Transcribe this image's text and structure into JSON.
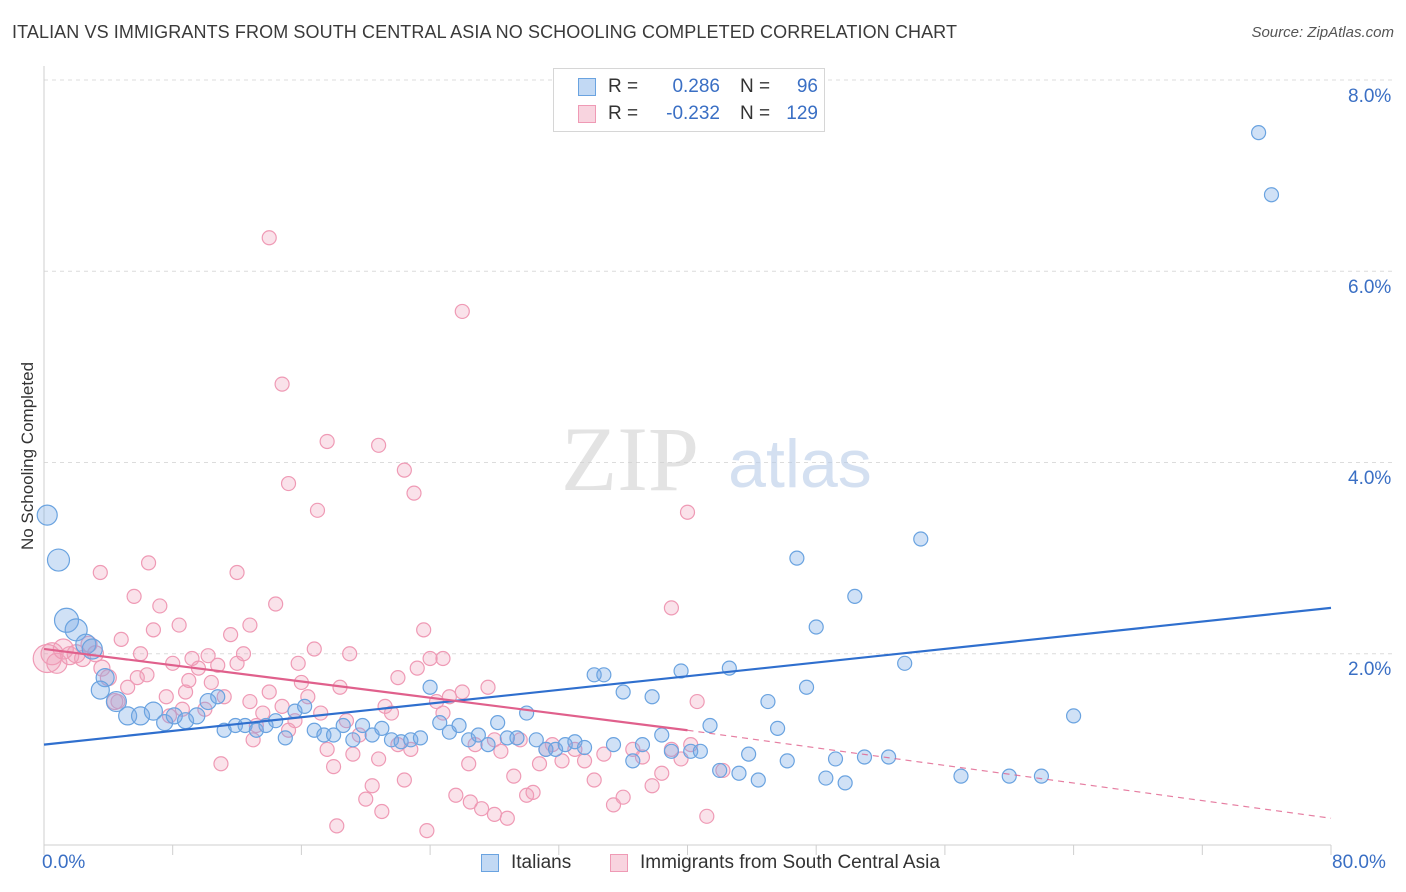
{
  "title": "ITALIAN VS IMMIGRANTS FROM SOUTH CENTRAL ASIA NO SCHOOLING COMPLETED CORRELATION CHART",
  "source": "Source: ZipAtlas.com",
  "watermark": {
    "zip": "ZIP",
    "atlas": "atlas"
  },
  "legend": {
    "r_label": "R =",
    "n_label": "N =",
    "items": [
      {
        "r": "0.286",
        "n": "96"
      },
      {
        "r": "-0.232",
        "n": "129"
      }
    ]
  },
  "bottom_legend": {
    "italians": "Italians",
    "immigrants": "Immigrants from South Central Asia"
  },
  "x_tick_labels": {
    "min": "0.0%",
    "max": "80.0%"
  },
  "y_tick_labels": [
    "8.0%",
    "6.0%",
    "4.0%",
    "2.0%"
  ],
  "colors": {
    "blue": "#6aa3e0",
    "blue_fill": "rgba(120,170,230,0.35)",
    "blue_line": "#2f6fce",
    "pink": "#ef9ab5",
    "pink_fill": "rgba(240,160,185,0.30)",
    "pink_line": "#e0608c",
    "tick_text": "#3a6fc4"
  },
  "chart_data": {
    "type": "scatter",
    "title": "ITALIAN VS IMMIGRANTS FROM SOUTH CENTRAL ASIA NO SCHOOLING COMPLETED CORRELATION CHART",
    "xlabel": "",
    "ylabel": "No Schooling Completed",
    "xlim": [
      0,
      80
    ],
    "ylim": [
      0,
      8.0
    ],
    "y_ticks": [
      2.0,
      4.0,
      6.0,
      8.0
    ],
    "grid": true,
    "legend_position": "top-center",
    "series": [
      {
        "name": "Italians",
        "r": 0.286,
        "n": 96,
        "trend": {
          "x": [
            0,
            80
          ],
          "y": [
            1.05,
            2.48
          ]
        },
        "points": [
          [
            0.2,
            3.45,
            10
          ],
          [
            0.9,
            2.98,
            11
          ],
          [
            1.4,
            2.35,
            12
          ],
          [
            2.0,
            2.25,
            11
          ],
          [
            2.6,
            2.1,
            10
          ],
          [
            3.0,
            2.05,
            10
          ],
          [
            3.8,
            1.75,
            9
          ],
          [
            3.5,
            1.62,
            9
          ],
          [
            4.5,
            1.5,
            10
          ],
          [
            5.2,
            1.35,
            9
          ],
          [
            6.0,
            1.35,
            9
          ],
          [
            6.8,
            1.4,
            9
          ],
          [
            7.5,
            1.28,
            8
          ],
          [
            8.1,
            1.35,
            8
          ],
          [
            8.8,
            1.3,
            8
          ],
          [
            9.5,
            1.35,
            8
          ],
          [
            10.2,
            1.5,
            8
          ],
          [
            10.8,
            1.55,
            7
          ],
          [
            11.2,
            1.2,
            7
          ],
          [
            11.9,
            1.25,
            7
          ],
          [
            12.5,
            1.25,
            7
          ],
          [
            13.2,
            1.2,
            7
          ],
          [
            13.8,
            1.25,
            7
          ],
          [
            14.4,
            1.3,
            7
          ],
          [
            15.0,
            1.12,
            7
          ],
          [
            15.6,
            1.4,
            7
          ],
          [
            16.2,
            1.45,
            7
          ],
          [
            16.8,
            1.2,
            7
          ],
          [
            17.4,
            1.15,
            7
          ],
          [
            18.0,
            1.15,
            7
          ],
          [
            18.6,
            1.25,
            7
          ],
          [
            19.2,
            1.1,
            7
          ],
          [
            19.8,
            1.25,
            7
          ],
          [
            20.4,
            1.15,
            7
          ],
          [
            21.0,
            1.22,
            7
          ],
          [
            21.6,
            1.1,
            7
          ],
          [
            22.2,
            1.08,
            7
          ],
          [
            22.8,
            1.1,
            7
          ],
          [
            23.4,
            1.12,
            7
          ],
          [
            24.0,
            1.65,
            7
          ],
          [
            24.6,
            1.28,
            7
          ],
          [
            25.2,
            1.18,
            7
          ],
          [
            25.8,
            1.25,
            7
          ],
          [
            26.4,
            1.1,
            7
          ],
          [
            27.0,
            1.15,
            7
          ],
          [
            27.6,
            1.05,
            7
          ],
          [
            28.2,
            1.28,
            7
          ],
          [
            28.8,
            1.12,
            7
          ],
          [
            29.4,
            1.12,
            7
          ],
          [
            30.0,
            1.38,
            7
          ],
          [
            30.6,
            1.1,
            7
          ],
          [
            31.2,
            1.0,
            7
          ],
          [
            31.8,
            1.0,
            7
          ],
          [
            32.4,
            1.05,
            7
          ],
          [
            33.0,
            1.08,
            7
          ],
          [
            33.6,
            1.02,
            7
          ],
          [
            34.2,
            1.78,
            7
          ],
          [
            34.8,
            1.78,
            7
          ],
          [
            35.4,
            1.05,
            7
          ],
          [
            36.0,
            1.6,
            7
          ],
          [
            36.6,
            0.88,
            7
          ],
          [
            37.2,
            1.05,
            7
          ],
          [
            37.8,
            1.55,
            7
          ],
          [
            38.4,
            1.15,
            7
          ],
          [
            39.0,
            0.98,
            7
          ],
          [
            39.6,
            1.82,
            7
          ],
          [
            40.2,
            0.98,
            7
          ],
          [
            40.8,
            0.98,
            7
          ],
          [
            41.4,
            1.25,
            7
          ],
          [
            42.0,
            0.78,
            7
          ],
          [
            42.6,
            1.85,
            7
          ],
          [
            43.2,
            0.75,
            7
          ],
          [
            43.8,
            0.95,
            7
          ],
          [
            44.4,
            0.68,
            7
          ],
          [
            45.0,
            1.5,
            7
          ],
          [
            45.6,
            1.22,
            7
          ],
          [
            46.2,
            0.88,
            7
          ],
          [
            46.8,
            3.0,
            7
          ],
          [
            47.4,
            1.65,
            7
          ],
          [
            48.0,
            2.28,
            7
          ],
          [
            48.6,
            0.7,
            7
          ],
          [
            49.2,
            0.9,
            7
          ],
          [
            49.8,
            0.65,
            7
          ],
          [
            50.4,
            2.6,
            7
          ],
          [
            51.0,
            0.92,
            7
          ],
          [
            52.5,
            0.92,
            7
          ],
          [
            53.5,
            1.9,
            7
          ],
          [
            54.5,
            3.2,
            7
          ],
          [
            57.0,
            0.72,
            7
          ],
          [
            60.0,
            0.72,
            7
          ],
          [
            62.0,
            0.72,
            7
          ],
          [
            64.0,
            1.35,
            7
          ],
          [
            75.5,
            7.45,
            7
          ],
          [
            76.3,
            6.8,
            7
          ]
        ]
      },
      {
        "name": "Immigrants from South Central Asia",
        "r": -0.232,
        "n": 129,
        "trend": {
          "x": [
            0,
            40
          ],
          "y": [
            2.05,
            1.2
          ]
        },
        "trend_dashed": {
          "x": [
            40,
            80
          ],
          "y": [
            1.2,
            0.28
          ]
        },
        "points": [
          [
            0.2,
            1.95,
            14
          ],
          [
            0.5,
            2.0,
            11
          ],
          [
            0.8,
            1.9,
            10
          ],
          [
            1.2,
            2.05,
            10
          ],
          [
            1.6,
            1.98,
            9
          ],
          [
            2.0,
            2.0,
            9
          ],
          [
            2.4,
            1.95,
            8
          ],
          [
            2.8,
            2.1,
            8
          ],
          [
            3.2,
            2.0,
            8
          ],
          [
            3.6,
            1.85,
            8
          ],
          [
            4.0,
            1.75,
            8
          ],
          [
            4.4,
            1.5,
            8
          ],
          [
            4.8,
            2.15,
            7
          ],
          [
            5.2,
            1.65,
            7
          ],
          [
            5.6,
            2.6,
            7
          ],
          [
            6.0,
            2.0,
            7
          ],
          [
            6.4,
            1.78,
            7
          ],
          [
            6.8,
            2.25,
            7
          ],
          [
            7.2,
            2.5,
            7
          ],
          [
            7.6,
            1.55,
            7
          ],
          [
            8.0,
            1.9,
            7
          ],
          [
            8.4,
            2.3,
            7
          ],
          [
            8.8,
            1.6,
            7
          ],
          [
            9.2,
            1.95,
            7
          ],
          [
            9.6,
            1.85,
            7
          ],
          [
            10.0,
            1.42,
            7
          ],
          [
            10.4,
            1.7,
            7
          ],
          [
            10.8,
            1.88,
            7
          ],
          [
            11.2,
            1.55,
            7
          ],
          [
            11.6,
            2.2,
            7
          ],
          [
            12.0,
            1.9,
            7
          ],
          [
            12.4,
            2.0,
            7
          ],
          [
            12.8,
            1.5,
            7
          ],
          [
            13.2,
            1.25,
            7
          ],
          [
            13.6,
            1.38,
            7
          ],
          [
            14.0,
            1.6,
            7
          ],
          [
            14.4,
            2.52,
            7
          ],
          [
            14.8,
            1.45,
            7
          ],
          [
            15.2,
            1.2,
            7
          ],
          [
            15.6,
            1.3,
            7
          ],
          [
            16.0,
            1.7,
            7
          ],
          [
            16.4,
            1.55,
            7
          ],
          [
            16.8,
            2.05,
            7
          ],
          [
            17.2,
            1.38,
            7
          ],
          [
            17.6,
            1.0,
            7
          ],
          [
            18.0,
            0.82,
            7
          ],
          [
            18.4,
            1.65,
            7
          ],
          [
            18.8,
            1.3,
            7
          ],
          [
            19.2,
            0.95,
            7
          ],
          [
            19.6,
            1.15,
            7
          ],
          [
            20.0,
            0.48,
            7
          ],
          [
            20.4,
            0.62,
            7
          ],
          [
            20.8,
            0.9,
            7
          ],
          [
            21.2,
            1.45,
            7
          ],
          [
            21.6,
            1.38,
            7
          ],
          [
            22.0,
            1.05,
            7
          ],
          [
            22.4,
            0.68,
            7
          ],
          [
            22.8,
            1.0,
            7
          ],
          [
            23.2,
            1.85,
            7
          ],
          [
            23.6,
            2.25,
            7
          ],
          [
            24.0,
            1.95,
            7
          ],
          [
            24.4,
            1.5,
            7
          ],
          [
            24.8,
            1.38,
            7
          ],
          [
            25.2,
            1.55,
            7
          ],
          [
            25.6,
            0.52,
            7
          ],
          [
            26.0,
            1.6,
            7
          ],
          [
            26.4,
            0.85,
            7
          ],
          [
            26.8,
            1.05,
            7
          ],
          [
            27.2,
            0.38,
            7
          ],
          [
            27.6,
            1.65,
            7
          ],
          [
            28.0,
            1.1,
            7
          ],
          [
            28.4,
            0.98,
            7
          ],
          [
            28.8,
            0.28,
            7
          ],
          [
            29.2,
            0.72,
            7
          ],
          [
            29.6,
            1.1,
            7
          ],
          [
            30.0,
            0.52,
            7
          ],
          [
            30.4,
            0.55,
            7
          ],
          [
            30.8,
            0.85,
            7
          ],
          [
            31.2,
            1.0,
            7
          ],
          [
            31.6,
            1.05,
            7
          ],
          [
            32.2,
            0.88,
            7
          ],
          [
            33.0,
            1.0,
            7
          ],
          [
            33.6,
            0.88,
            7
          ],
          [
            34.2,
            0.68,
            7
          ],
          [
            34.8,
            0.95,
            7
          ],
          [
            35.4,
            0.42,
            7
          ],
          [
            36.0,
            0.5,
            7
          ],
          [
            36.6,
            1.0,
            7
          ],
          [
            37.2,
            0.92,
            7
          ],
          [
            37.8,
            0.62,
            7
          ],
          [
            38.4,
            0.75,
            7
          ],
          [
            39.0,
            1.0,
            7
          ],
          [
            39.6,
            0.9,
            7
          ],
          [
            40.2,
            1.05,
            7
          ],
          [
            40.6,
            1.5,
            7
          ],
          [
            41.2,
            0.3,
            7
          ],
          [
            42.2,
            0.78,
            7
          ],
          [
            39.0,
            2.48,
            7
          ],
          [
            40.0,
            3.48,
            7
          ],
          [
            14.0,
            6.35,
            7
          ],
          [
            14.8,
            4.82,
            7
          ],
          [
            17.6,
            4.22,
            7
          ],
          [
            20.8,
            4.18,
            7
          ],
          [
            22.4,
            3.92,
            7
          ],
          [
            23.0,
            3.68,
            7
          ],
          [
            15.2,
            3.78,
            7
          ],
          [
            17.0,
            3.5,
            7
          ],
          [
            26.0,
            5.58,
            7
          ],
          [
            12.0,
            2.85,
            7
          ],
          [
            6.5,
            2.95,
            7
          ],
          [
            3.5,
            2.85,
            7
          ],
          [
            9.0,
            1.72,
            7
          ],
          [
            7.8,
            1.35,
            7
          ],
          [
            11.0,
            0.85,
            7
          ],
          [
            13.0,
            1.1,
            7
          ],
          [
            18.2,
            0.2,
            7
          ],
          [
            21.0,
            0.35,
            7
          ],
          [
            23.8,
            0.15,
            7
          ],
          [
            26.5,
            0.45,
            7
          ],
          [
            28.0,
            0.32,
            7
          ],
          [
            19.0,
            2.0,
            7
          ],
          [
            22.0,
            1.75,
            7
          ],
          [
            24.8,
            1.95,
            7
          ],
          [
            15.8,
            1.9,
            7
          ],
          [
            12.8,
            2.3,
            7
          ],
          [
            10.2,
            1.98,
            7
          ],
          [
            8.6,
            1.42,
            7
          ],
          [
            5.8,
            1.75,
            7
          ],
          [
            4.6,
            1.5,
            7
          ]
        ]
      }
    ]
  }
}
